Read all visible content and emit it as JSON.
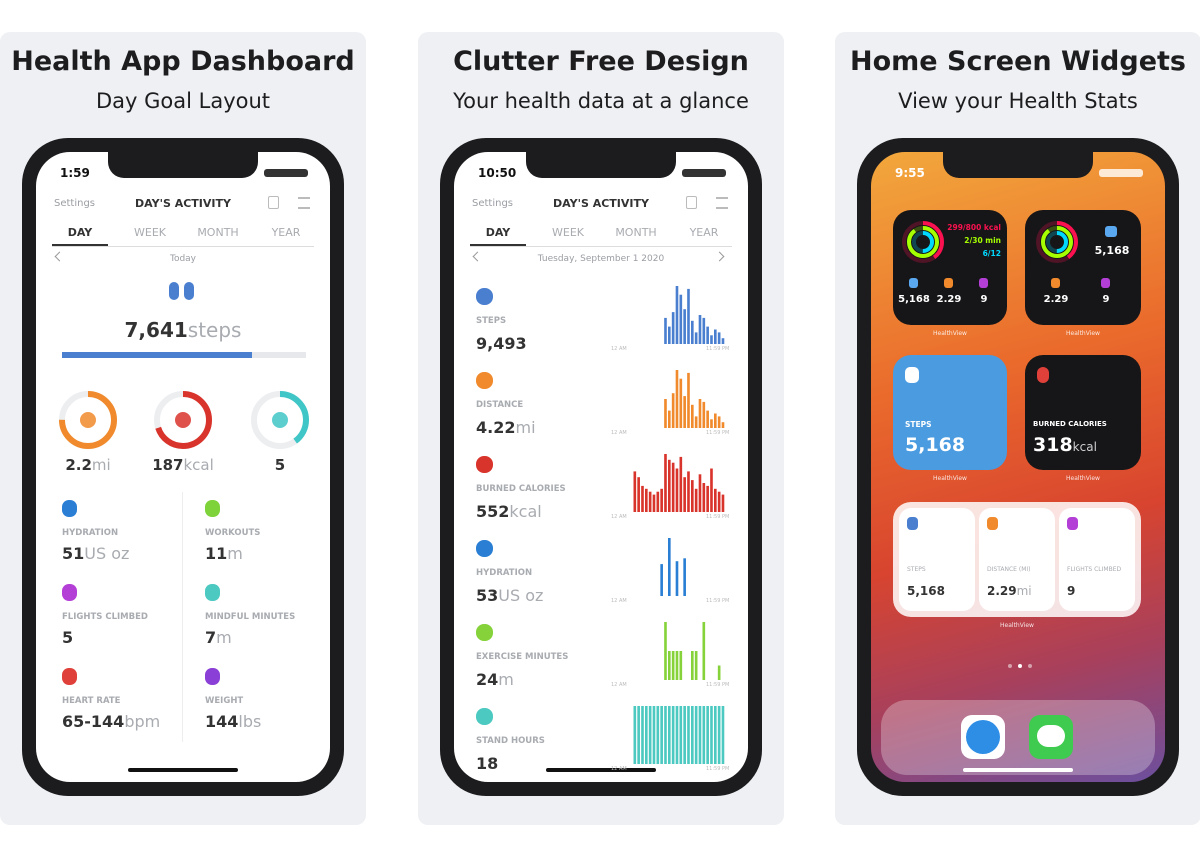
{
  "panels": [
    {
      "title": "Health App Dashboard",
      "subtitle": "Day Goal Layout",
      "time": "1:59",
      "nav_left": "Settings",
      "nav_title": "DAY'S ACTIVITY",
      "tabs": [
        "DAY",
        "WEEK",
        "MONTH",
        "YEAR"
      ],
      "date": "Today",
      "steps": {
        "value": "7,641",
        "unit": "steps",
        "progress": 78,
        "color": "#4a7fd0"
      },
      "rings": [
        {
          "value": "2.2",
          "unit": "mi",
          "progress": 75,
          "color": "#f08a2c"
        },
        {
          "value": "187",
          "unit": "kcal",
          "progress": 70,
          "color": "#d9342b"
        },
        {
          "value": "5",
          "progress": 40,
          "color": "#40c6c6"
        }
      ],
      "metrics": [
        {
          "label": "HYDRATION",
          "value": "51",
          "unit": "US oz",
          "color": "#2a7fd4"
        },
        {
          "label": "WORKOUTS",
          "value": "11",
          "unit": "m",
          "color": "#7ed23a"
        },
        {
          "label": "FLIGHTS CLIMBED",
          "value": "5",
          "color": "#b43fd6"
        },
        {
          "label": "MINDFUL MINUTES",
          "value": "7",
          "unit": "m",
          "color": "#4cc9c0"
        },
        {
          "label": "HEART RATE",
          "value": "65-144",
          "unit": "bpm",
          "color": "#e0403a"
        },
        {
          "label": "WEIGHT",
          "value": "144",
          "unit": "lbs",
          "color": "#8a3fd6"
        }
      ]
    },
    {
      "title": "Clutter Free Design",
      "subtitle": "Your health data at a glance",
      "time": "10:50",
      "nav_left": "Settings",
      "nav_title": "DAY'S ACTIVITY",
      "tabs": [
        "DAY",
        "WEEK",
        "MONTH",
        "YEAR"
      ],
      "date": "Tuesday, September 1 2020",
      "axis_start": "12 AM",
      "axis_end": "11:59 PM",
      "rows": [
        {
          "label": "STEPS",
          "value": "9,493",
          "color": "#4a7fd0",
          "bars": [
            0,
            0,
            0,
            0,
            0,
            0,
            0,
            0,
            45,
            30,
            55,
            100,
            85,
            60,
            95,
            40,
            20,
            50,
            45,
            30,
            15,
            25,
            20,
            10
          ]
        },
        {
          "label": "DISTANCE",
          "value": "4.22",
          "unit": "mi",
          "color": "#f08a2c",
          "bars": [
            0,
            0,
            0,
            0,
            0,
            0,
            0,
            0,
            50,
            30,
            60,
            100,
            85,
            55,
            95,
            40,
            20,
            50,
            45,
            30,
            15,
            25,
            20,
            10
          ]
        },
        {
          "label": "BURNED CALORIES",
          "value": "552",
          "unit": "kcal",
          "color": "#d9342b",
          "bars": [
            70,
            60,
            45,
            40,
            35,
            30,
            35,
            40,
            100,
            90,
            85,
            75,
            95,
            60,
            70,
            55,
            40,
            65,
            50,
            45,
            75,
            40,
            35,
            30
          ]
        },
        {
          "label": "HYDRATION",
          "value": "53",
          "unit": "US oz",
          "color": "#2a7fd4",
          "bars": [
            0,
            0,
            0,
            0,
            0,
            0,
            0,
            55,
            0,
            100,
            0,
            60,
            0,
            65,
            0,
            0,
            0,
            0,
            0,
            0,
            0,
            0,
            0,
            0
          ]
        },
        {
          "label": "EXERCISE MINUTES",
          "value": "24",
          "unit": "m",
          "color": "#86d23a",
          "bars": [
            0,
            0,
            0,
            0,
            0,
            0,
            0,
            0,
            100,
            50,
            50,
            50,
            50,
            0,
            0,
            50,
            50,
            0,
            100,
            0,
            0,
            0,
            25,
            0
          ]
        },
        {
          "label": "STAND HOURS",
          "value": "18",
          "color": "#4cc9c0",
          "bars": [
            100,
            100,
            100,
            100,
            100,
            100,
            100,
            100,
            100,
            100,
            100,
            100,
            100,
            100,
            100,
            100,
            100,
            100,
            100,
            100,
            100,
            100,
            100,
            100
          ]
        }
      ]
    },
    {
      "title": "Home Screen Widgets",
      "subtitle": "View your Health Stats",
      "time": "9:55",
      "widgets": {
        "rings_small": {
          "kcal": "299/800 kcal",
          "min": "2/30 min",
          "hours": "6/12",
          "stats": [
            "5,168",
            "2.29",
            "9"
          ],
          "caption": "HealthView"
        },
        "rings_steps": {
          "steps": "5,168",
          "stats": [
            "2.29",
            "9"
          ],
          "caption": "HealthView"
        },
        "steps": {
          "label": "STEPS",
          "value": "5,168",
          "caption": "HealthView"
        },
        "calories": {
          "label": "BURNED CALORIES",
          "value": "318",
          "unit": "kcal",
          "caption": "HealthView"
        },
        "medium": {
          "cells": [
            {
              "label": "STEPS",
              "value": "5,168"
            },
            {
              "label": "DISTANCE (MI)",
              "value": "2.29",
              "unit": "mi"
            },
            {
              "label": "FLIGHTS CLIMBED",
              "value": "9"
            }
          ],
          "caption": "HealthView"
        }
      }
    }
  ]
}
